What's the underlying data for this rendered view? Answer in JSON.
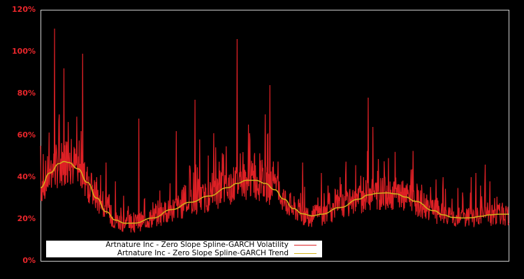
{
  "chart_data": {
    "type": "line",
    "title": "",
    "xlabel": "",
    "ylabel": "",
    "ylim": [
      0,
      120
    ],
    "yticks": [
      "0%",
      "20%",
      "40%",
      "60%",
      "80%",
      "100%",
      "120%"
    ],
    "grid": false,
    "legend_position": "lower-left",
    "background": "#000000",
    "series": [
      {
        "name": "Artnature Inc - Zero Slope Spline-GARCH Volatility",
        "color": "#dd2025",
        "x_frac": [
          0.0,
          0.01,
          0.02,
          0.03,
          0.04,
          0.05,
          0.06,
          0.07,
          0.08,
          0.09,
          0.1,
          0.11,
          0.12,
          0.13,
          0.14,
          0.15,
          0.16,
          0.17,
          0.18,
          0.19,
          0.2,
          0.21,
          0.22,
          0.23,
          0.24,
          0.25,
          0.26,
          0.27,
          0.28,
          0.29,
          0.3,
          0.31,
          0.32,
          0.33,
          0.34,
          0.35,
          0.36,
          0.37,
          0.38,
          0.39,
          0.4,
          0.41,
          0.42,
          0.43,
          0.44,
          0.45,
          0.46,
          0.47,
          0.48,
          0.49,
          0.5,
          0.51,
          0.52,
          0.53,
          0.54,
          0.55,
          0.56,
          0.57,
          0.58,
          0.59,
          0.6,
          0.61,
          0.62,
          0.63,
          0.64,
          0.65,
          0.66,
          0.67,
          0.68,
          0.69,
          0.7,
          0.71,
          0.72,
          0.73,
          0.74,
          0.75,
          0.76,
          0.77,
          0.78,
          0.79,
          0.8,
          0.81,
          0.82,
          0.83,
          0.84,
          0.85,
          0.86,
          0.87,
          0.88,
          0.89,
          0.9,
          0.91,
          0.92,
          0.93,
          0.94,
          0.95,
          0.96,
          0.97,
          0.98,
          0.99,
          1.0
        ],
        "values": [
          55,
          32,
          44,
          111,
          70,
          92,
          52,
          42,
          38,
          99,
          45,
          35,
          40,
          28,
          47,
          20,
          38,
          15,
          16,
          22,
          14,
          68,
          18,
          19,
          28,
          19,
          22,
          23,
          24,
          62,
          26,
          36,
          43,
          77,
          58,
          33,
          30,
          61,
          36,
          48,
          33,
          31,
          106,
          35,
          40,
          42,
          36,
          48,
          70,
          84,
          40,
          38,
          26,
          24,
          22,
          23,
          47,
          20,
          24,
          24,
          42,
          22,
          24,
          34,
          40,
          31,
          33,
          30,
          34,
          40,
          78,
          64,
          43,
          38,
          36,
          32,
          30,
          33,
          28,
          26,
          26,
          24,
          23,
          21,
          22,
          22,
          40,
          19,
          18,
          20,
          24,
          25,
          40,
          42,
          36,
          46,
          38,
          30,
          24,
          20,
          18
        ]
      },
      {
        "name": "Artnature Inc - Zero Slope Spline-GARCH Trend",
        "color": "#d4b21c",
        "x_frac": [
          0.0,
          0.02,
          0.04,
          0.05,
          0.06,
          0.08,
          0.1,
          0.12,
          0.14,
          0.16,
          0.18,
          0.2,
          0.24,
          0.28,
          0.32,
          0.36,
          0.4,
          0.42,
          0.44,
          0.46,
          0.48,
          0.5,
          0.52,
          0.54,
          0.56,
          0.58,
          0.6,
          0.64,
          0.68,
          0.7,
          0.72,
          0.74,
          0.76,
          0.78,
          0.8,
          0.84,
          0.86,
          0.88,
          0.9,
          0.92,
          0.94,
          0.96,
          0.98,
          1.0
        ],
        "values": [
          35,
          42,
          46.5,
          47.5,
          47,
          44,
          37.5,
          30,
          23.5,
          19.5,
          18,
          18,
          20.5,
          24.5,
          28,
          31,
          35,
          37,
          38.5,
          38.5,
          37,
          34,
          29.5,
          25,
          22.5,
          21.5,
          22.3,
          25.5,
          29.5,
          31.5,
          32.3,
          32.5,
          32,
          30.5,
          28.5,
          24,
          22,
          20.8,
          20.5,
          20.6,
          21.3,
          22,
          22.3,
          22.3
        ]
      }
    ]
  },
  "legend": {
    "items": [
      {
        "label": "Artnature Inc - Zero Slope Spline-GARCH Volatility",
        "color": "#dd2025"
      },
      {
        "label": "Artnature Inc - Zero Slope Spline-GARCH Trend",
        "color": "#d4b21c"
      }
    ]
  }
}
